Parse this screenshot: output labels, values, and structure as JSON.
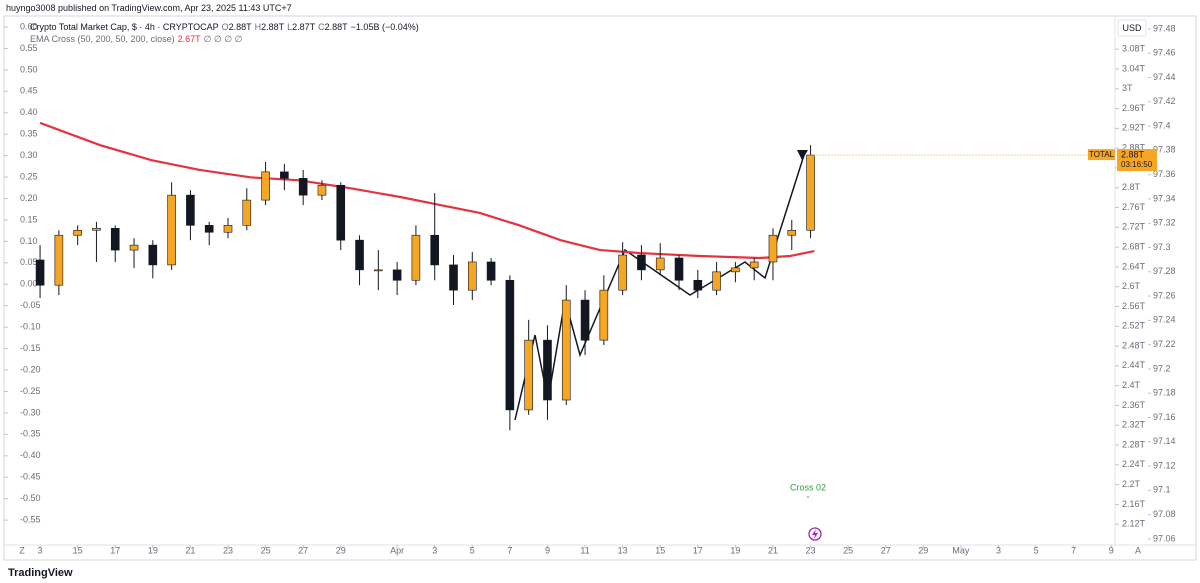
{
  "header": {
    "title": "huyngo3008 published on TradingView.com, Apr 23, 2025 11:43 UTC+7"
  },
  "chart_data": {
    "type": "candlestick",
    "title": "Crypto Total Market Cap, $ · 4h · CRYPTOCAP",
    "legend_ohlc": [
      "O",
      "2.88T",
      "H",
      "2.88T",
      "L",
      "2.87T",
      "C",
      "2.88T",
      "−1.05B (−0.04%)"
    ],
    "up_color": "#f5a623",
    "down_color": "#131722",
    "x": [
      0,
      1,
      2,
      3,
      4,
      5,
      6,
      7,
      8,
      9,
      10,
      11,
      12,
      13,
      14,
      15,
      16,
      17,
      18,
      19,
      20,
      21,
      22,
      23,
      24,
      25,
      26,
      27,
      28,
      29,
      30,
      31,
      32,
      33,
      34,
      35,
      36,
      37,
      38,
      39,
      40,
      41
    ],
    "candles": [
      [
        2.654,
        2.684,
        2.577,
        2.603
      ],
      [
        2.603,
        2.714,
        2.583,
        2.704
      ],
      [
        2.704,
        2.724,
        2.684,
        2.714
      ],
      [
        2.714,
        2.731,
        2.65,
        2.718
      ],
      [
        2.718,
        2.724,
        2.65,
        2.674
      ],
      [
        2.674,
        2.698,
        2.638,
        2.684
      ],
      [
        2.684,
        2.694,
        2.617,
        2.644
      ],
      [
        2.644,
        2.811,
        2.634,
        2.785
      ],
      [
        2.785,
        2.795,
        2.694,
        2.724
      ],
      [
        2.724,
        2.731,
        2.684,
        2.71
      ],
      [
        2.71,
        2.739,
        2.698,
        2.724
      ],
      [
        2.724,
        2.799,
        2.714,
        2.775
      ],
      [
        2.775,
        2.852,
        2.765,
        2.832
      ],
      [
        2.832,
        2.848,
        2.795,
        2.819
      ],
      [
        2.819,
        2.836,
        2.765,
        2.785
      ],
      [
        2.785,
        2.815,
        2.775,
        2.805
      ],
      [
        2.805,
        2.811,
        2.674,
        2.694
      ],
      [
        2.694,
        2.704,
        2.603,
        2.634
      ],
      [
        2.634,
        2.674,
        2.593,
        2.634
      ],
      [
        2.634,
        2.65,
        2.583,
        2.613
      ],
      [
        2.613,
        2.724,
        2.603,
        2.704
      ],
      [
        2.704,
        2.789,
        2.613,
        2.644
      ],
      [
        2.644,
        2.664,
        2.563,
        2.593
      ],
      [
        2.593,
        2.67,
        2.573,
        2.65
      ],
      [
        2.65,
        2.658,
        2.603,
        2.613
      ],
      [
        2.613,
        2.623,
        2.31,
        2.351
      ],
      [
        2.351,
        2.533,
        2.341,
        2.492
      ],
      [
        2.492,
        2.522,
        2.331,
        2.371
      ],
      [
        2.371,
        2.603,
        2.361,
        2.573
      ],
      [
        2.573,
        2.593,
        2.462,
        2.492
      ],
      [
        2.492,
        2.623,
        2.482,
        2.593
      ],
      [
        2.593,
        2.69,
        2.583,
        2.664
      ],
      [
        2.664,
        2.684,
        2.613,
        2.634
      ],
      [
        2.634,
        2.688,
        2.623,
        2.658
      ],
      [
        2.658,
        2.664,
        2.593,
        2.613
      ],
      [
        2.613,
        2.634,
        2.577,
        2.593
      ],
      [
        2.593,
        2.65,
        2.583,
        2.63
      ],
      [
        2.63,
        2.65,
        2.609,
        2.638
      ],
      [
        2.638,
        2.658,
        2.613,
        2.65
      ],
      [
        2.65,
        2.718,
        2.613,
        2.704
      ],
      [
        2.704,
        2.735,
        2.674,
        2.714
      ],
      [
        2.714,
        2.886,
        2.698,
        2.866
      ]
    ],
    "ema": {
      "name": "EMA Cross (50, 200, 50, 200, close)",
      "value_label": "2.67T",
      "extra": "∅ ∅ ∅ ∅",
      "color": "#e5323e",
      "x": [
        0,
        3.2,
        5.9,
        8.5,
        11.2,
        13.8,
        16.5,
        19.2,
        21.3,
        23.4,
        25.5,
        27.7,
        29.8,
        31.9,
        35.1,
        38.3,
        39.9,
        41.2
      ],
      "values": [
        2.931,
        2.886,
        2.856,
        2.836,
        2.821,
        2.815,
        2.799,
        2.781,
        2.765,
        2.749,
        2.724,
        2.694,
        2.674,
        2.668,
        2.662,
        2.658,
        2.662,
        2.672
      ]
    },
    "xlim": [
      -1.6,
      57.2
    ],
    "xticks": [
      {
        "value": 0,
        "label": "3"
      },
      {
        "value": 2,
        "label": "15"
      },
      {
        "value": 4,
        "label": "17"
      },
      {
        "value": 6,
        "label": "19"
      },
      {
        "value": 8,
        "label": "21"
      },
      {
        "value": 10,
        "label": "23"
      },
      {
        "value": 12,
        "label": "25"
      },
      {
        "value": 14,
        "label": "27"
      },
      {
        "value": 16,
        "label": "29"
      },
      {
        "value": 19,
        "label": "Apr"
      },
      {
        "value": 21,
        "label": "3"
      },
      {
        "value": 23,
        "label": "5"
      },
      {
        "value": 25,
        "label": "7"
      },
      {
        "value": 27,
        "label": "9"
      },
      {
        "value": 29,
        "label": "11"
      },
      {
        "value": 31,
        "label": "13"
      },
      {
        "value": 33,
        "label": "15"
      },
      {
        "value": 35,
        "label": "17"
      },
      {
        "value": 37,
        "label": "19"
      },
      {
        "value": 39,
        "label": "21"
      },
      {
        "value": 41,
        "label": "23"
      },
      {
        "value": 43,
        "label": "25"
      },
      {
        "value": 45,
        "label": "27"
      },
      {
        "value": 47,
        "label": "29"
      },
      {
        "value": 49,
        "label": "May"
      },
      {
        "value": 51,
        "label": "3"
      },
      {
        "value": 53,
        "label": "5"
      },
      {
        "value": 55,
        "label": "7"
      },
      {
        "value": 57,
        "label": "9"
      }
    ],
    "ylim": [
      2.078,
      3.143
    ],
    "yticks": [
      {
        "value": 3.08,
        "label": "3.08T"
      },
      {
        "value": 3.04,
        "label": "3.04T"
      },
      {
        "value": 3,
        "label": "3T"
      },
      {
        "value": 2.96,
        "label": "2.96T"
      },
      {
        "value": 2.92,
        "label": "2.92T"
      },
      {
        "value": 2.88,
        "label": "2.88T"
      },
      {
        "value": 2.84,
        "label": "2.84T"
      },
      {
        "value": 2.8,
        "label": "2.8T"
      },
      {
        "value": 2.76,
        "label": "2.76T"
      },
      {
        "value": 2.72,
        "label": "2.72T"
      },
      {
        "value": 2.68,
        "label": "2.68T"
      },
      {
        "value": 2.64,
        "label": "2.64T"
      },
      {
        "value": 2.6,
        "label": "2.6T"
      },
      {
        "value": 2.56,
        "label": "2.56T"
      },
      {
        "value": 2.52,
        "label": "2.52T"
      },
      {
        "value": 2.48,
        "label": "2.48T"
      },
      {
        "value": 2.44,
        "label": "2.44T"
      },
      {
        "value": 2.4,
        "label": "2.4T"
      },
      {
        "value": 2.36,
        "label": "2.36T"
      },
      {
        "value": 2.32,
        "label": "2.32T"
      },
      {
        "value": 2.28,
        "label": "2.28T"
      },
      {
        "value": 2.24,
        "label": "2.24T"
      },
      {
        "value": 2.2,
        "label": "2.2T"
      },
      {
        "value": 2.16,
        "label": "2.16T"
      },
      {
        "value": 2.12,
        "label": "2.12T"
      }
    ],
    "y2lim": [
      97.055,
      97.489
    ],
    "y2ticks": [
      97.48,
      97.46,
      97.44,
      97.42,
      97.4,
      97.38,
      97.36,
      97.34,
      97.32,
      97.3,
      97.28,
      97.26,
      97.24,
      97.22,
      97.2,
      97.18,
      97.16,
      97.14,
      97.12,
      97.1,
      97.08,
      97.06
    ],
    "y3lim": [
      -0.608,
      0.621
    ],
    "y3ticks": [
      {
        "value": 0.6,
        "label": "0.60"
      },
      {
        "value": 0.55,
        "label": "0.55"
      },
      {
        "value": 0.5,
        "label": "0.50"
      },
      {
        "value": 0.45,
        "label": "0.45"
      },
      {
        "value": 0.4,
        "label": "0.40"
      },
      {
        "value": 0.35,
        "label": "0.35"
      },
      {
        "value": 0.3,
        "label": "0.30"
      },
      {
        "value": 0.25,
        "label": "0.25"
      },
      {
        "value": 0.2,
        "label": "0.20"
      },
      {
        "value": 0.15,
        "label": "0.15"
      },
      {
        "value": 0.1,
        "label": "0.10"
      },
      {
        "value": 0.05,
        "label": "0.05"
      },
      {
        "value": 0,
        "label": "0.00"
      },
      {
        "value": -0.05,
        "label": "-0.05"
      },
      {
        "value": -0.1,
        "label": "-0.10"
      },
      {
        "value": -0.15,
        "label": "-0.15"
      },
      {
        "value": -0.2,
        "label": "-0.20"
      },
      {
        "value": -0.25,
        "label": "-0.25"
      },
      {
        "value": -0.3,
        "label": "-0.30"
      },
      {
        "value": -0.35,
        "label": "-0.35"
      },
      {
        "value": -0.4,
        "label": "-0.40"
      },
      {
        "value": -0.45,
        "label": "-0.45"
      },
      {
        "value": -0.5,
        "label": "-0.50"
      },
      {
        "value": -0.55,
        "label": "-0.55"
      }
    ],
    "currency": "USD",
    "price_tag": {
      "symbol": "TOTAL",
      "price": "2.88T",
      "countdown": "03:16:50"
    },
    "annotations": [
      "Cross 02"
    ],
    "controls": [
      "Z",
      "A"
    ]
  },
  "footer": {
    "brand": "TradingView"
  }
}
